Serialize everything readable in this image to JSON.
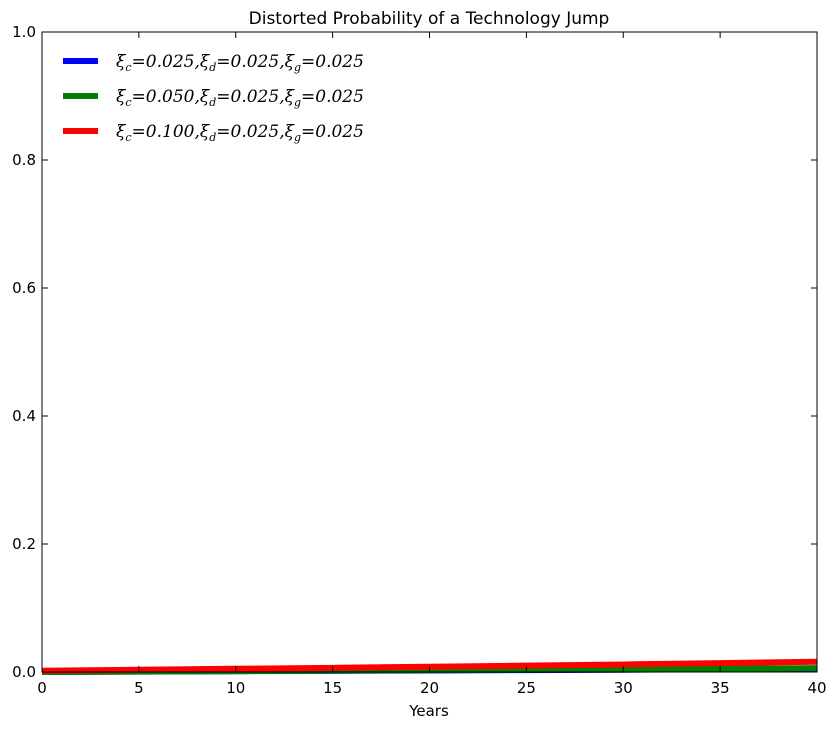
{
  "chart_data": {
    "type": "line",
    "title": "Distorted Probability of a Technology Jump",
    "xlabel": "Years",
    "ylabel": "",
    "xlim": [
      0,
      40
    ],
    "ylim": [
      0.0,
      1.0
    ],
    "x_ticks": [
      0,
      5,
      10,
      15,
      20,
      25,
      30,
      35,
      40
    ],
    "x_tick_labels": [
      "0",
      "5",
      "10",
      "15",
      "20",
      "25",
      "30",
      "35",
      "40"
    ],
    "y_ticks": [
      0.0,
      0.2,
      0.4,
      0.6,
      0.8,
      1.0
    ],
    "y_tick_labels": [
      "0.0",
      "0.2",
      "0.4",
      "0.6",
      "0.8",
      "1.0"
    ],
    "grid": false,
    "legend_position": "top-left",
    "x": [
      0,
      5,
      10,
      15,
      20,
      25,
      30,
      35,
      40
    ],
    "series": [
      {
        "name": "ξc=0.025,ξd=0.025,ξg=0.025",
        "legend": [
          {
            "t": "ξ"
          },
          {
            "s": "c"
          },
          {
            "t": "=0.025,ξ"
          },
          {
            "s": "d"
          },
          {
            "t": "=0.025,ξ"
          },
          {
            "s": "g"
          },
          {
            "t": "=0.025"
          }
        ],
        "color": "#0000ff",
        "values": [
          0.0,
          0.0006,
          0.0012,
          0.0018,
          0.0024,
          0.003,
          0.0036,
          0.0043,
          0.005
        ]
      },
      {
        "name": "ξc=0.050,ξd=0.025,ξg=0.025",
        "legend": [
          {
            "t": "ξ"
          },
          {
            "s": "c"
          },
          {
            "t": "=0.050,ξ"
          },
          {
            "s": "d"
          },
          {
            "t": "=0.025,ξ"
          },
          {
            "s": "g"
          },
          {
            "t": "=0.025"
          }
        ],
        "color": "#008000",
        "values": [
          0.0,
          0.0007,
          0.0014,
          0.0021,
          0.0029,
          0.0036,
          0.0044,
          0.0052,
          0.006
        ]
      },
      {
        "name": "ξc=0.100,ξd=0.025,ξg=0.025",
        "legend": [
          {
            "t": "ξ"
          },
          {
            "s": "c"
          },
          {
            "t": "=0.100,ξ"
          },
          {
            "s": "d"
          },
          {
            "t": "=0.025,ξ"
          },
          {
            "s": "g"
          },
          {
            "t": "=0.025"
          }
        ],
        "color": "#ff0000",
        "values": [
          0.002,
          0.0035,
          0.005,
          0.0065,
          0.0082,
          0.0099,
          0.0118,
          0.0138,
          0.016
        ]
      }
    ]
  }
}
